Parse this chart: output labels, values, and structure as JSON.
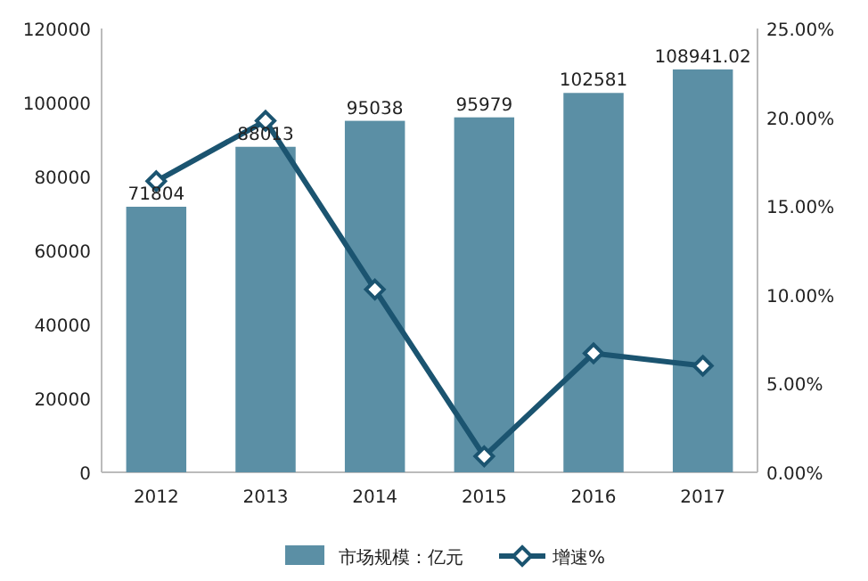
{
  "chart_data": {
    "type": "bar",
    "categories": [
      "2012",
      "2013",
      "2014",
      "2015",
      "2016",
      "2017"
    ],
    "series": [
      {
        "name": "市场规模：亿元",
        "color": "#5b8fa5",
        "values": [
          71804,
          88013,
          95038,
          95979,
          102581,
          108941.02
        ],
        "data_labels": true
      },
      {
        "name": "增速%",
        "type": "line",
        "axis": "y2",
        "color": "#1b5470",
        "marker": "diamond",
        "values": [
          16.4,
          19.8,
          10.3,
          0.9,
          6.7,
          6.0
        ]
      }
    ],
    "ylim": [
      0,
      120000
    ],
    "yticks": [
      0,
      20000,
      40000,
      60000,
      80000,
      100000,
      120000
    ],
    "y2lim": [
      0,
      25
    ],
    "y2ticks": [
      {
        "value": 0,
        "label": "0.00%"
      },
      {
        "value": 5,
        "label": "5.00%"
      },
      {
        "value": 10,
        "label": "10.00%"
      },
      {
        "value": 15,
        "label": "15.00%"
      },
      {
        "value": 20,
        "label": "20.00%"
      },
      {
        "value": 25,
        "label": "25.00%"
      }
    ],
    "legend": "bottom",
    "grid": false
  }
}
